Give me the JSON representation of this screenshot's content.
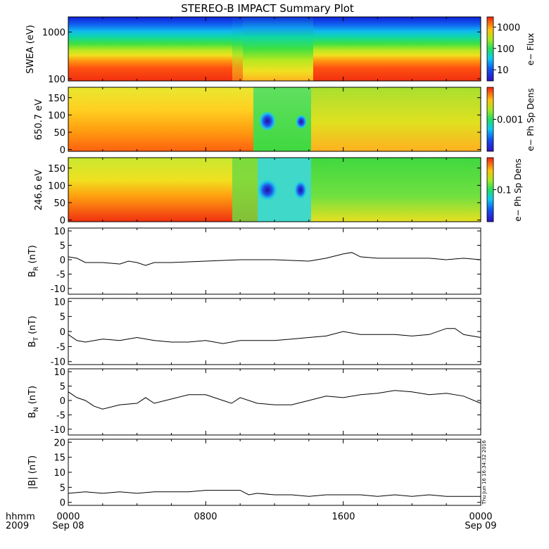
{
  "title": "STEREO-B IMPACT Summary Plot",
  "time_axis": {
    "corner_label_1": "hhmm",
    "corner_label_2": "2009",
    "ticks": [
      {
        "time": "0000",
        "date": "Sep 08"
      },
      {
        "time": "0800",
        "date": ""
      },
      {
        "time": "1600",
        "date": ""
      },
      {
        "time": "0000",
        "date": "Sep 09"
      }
    ]
  },
  "timestamp": "Thu Jun 16 16:34:32 2016",
  "colors": {
    "trace": "#000000",
    "frame": "#000000",
    "background": "#ffffff"
  },
  "chart_data": [
    {
      "type": "heatmap",
      "ylabel": "SWEA (eV)",
      "y_scale": "log",
      "ylim": [
        90,
        2100
      ],
      "y_ticks": [
        100,
        1000
      ],
      "y_tick_labels": [
        "100",
        "1000"
      ],
      "colorbar": {
        "label": "e− Flux",
        "scale": "log",
        "ticks": [
          10,
          100,
          1000
        ],
        "tick_labels": [
          "10",
          "100",
          "1000"
        ]
      },
      "x_range_hours": [
        0,
        24
      ],
      "features": "high flux (red) below ~300 eV, falling to blue above ~1500 eV; reduced flux between ~10:00 and ~14:30"
    },
    {
      "type": "heatmap",
      "ylabel": "650.7 eV",
      "ylim": [
        -5,
        180
      ],
      "y_ticks": [
        0,
        50,
        100,
        150
      ],
      "colorbar": {
        "label": "e− Ph Sp Dens",
        "ticks": [
          0.001
        ],
        "tick_labels": [
          "0.001"
        ]
      },
      "x_range_hours": [
        0,
        24
      ],
      "features": "pitch-angle distribution; green depletion ~11:00-14:30 with blue spots near 12:00 and 14:00 at ~90 deg"
    },
    {
      "type": "heatmap",
      "ylabel": "246.6 eV",
      "ylim": [
        -5,
        180
      ],
      "y_ticks": [
        0,
        50,
        100,
        150
      ],
      "colorbar": {
        "label": "e− Ph Sp Dens",
        "ticks": [
          0.1
        ],
        "tick_labels": [
          "0.1"
        ]
      },
      "x_range_hours": [
        0,
        24
      ],
      "features": "red/orange below 50 deg before ~09:30; blue-cyan block ~10:30-14:30 with dark spots near 12:00 and 14:00"
    },
    {
      "type": "line",
      "ylabel": "B_R (nT)",
      "ylabel_main": "B",
      "ylabel_sub": "R",
      "ylabel_unit": " (nT)",
      "ylim": [
        -12,
        11
      ],
      "y_ticks": [
        -10,
        -5,
        0,
        5,
        10
      ],
      "x_hours": [
        0,
        0.5,
        1,
        2,
        3,
        3.5,
        4,
        4.5,
        5,
        6,
        8,
        10,
        12,
        14,
        15,
        16,
        16.5,
        17,
        18,
        19,
        20,
        21,
        22,
        23,
        24
      ],
      "values": [
        1,
        0.5,
        -1,
        -1,
        -1.5,
        -0.5,
        -1,
        -2,
        -1,
        -1,
        -0.5,
        0,
        0,
        -0.5,
        0.5,
        2,
        2.5,
        1,
        0.5,
        0.5,
        0.5,
        0.5,
        0,
        0.5,
        0
      ]
    },
    {
      "type": "line",
      "ylabel": "B_T (nT)",
      "ylabel_main": "B",
      "ylabel_sub": "T",
      "ylabel_unit": " (nT)",
      "ylim": [
        -11,
        11
      ],
      "y_ticks": [
        -10,
        -5,
        0,
        5,
        10
      ],
      "x_hours": [
        0,
        0.5,
        1,
        2,
        3,
        4,
        5,
        6,
        7,
        8,
        9,
        10,
        11,
        12,
        13,
        14,
        15,
        16,
        17,
        18,
        19,
        20,
        21,
        22,
        22.5,
        23,
        24
      ],
      "values": [
        -1,
        -3,
        -3.5,
        -2.5,
        -3,
        -2,
        -3,
        -3.5,
        -3.5,
        -3,
        -4,
        -3,
        -3,
        -3,
        -2.5,
        -2,
        -1.5,
        0,
        -1,
        -1,
        -1,
        -1.5,
        -1,
        1,
        1,
        -1,
        -2
      ]
    },
    {
      "type": "line",
      "ylabel": "B_N (nT)",
      "ylabel_main": "B",
      "ylabel_sub": "N",
      "ylabel_unit": " (nT)",
      "ylim": [
        -12,
        11
      ],
      "y_ticks": [
        -10,
        -5,
        0,
        5,
        10
      ],
      "x_hours": [
        0,
        0.5,
        1,
        1.5,
        2,
        3,
        4,
        4.5,
        5,
        6,
        7,
        8,
        9,
        9.5,
        10,
        11,
        12,
        13,
        14,
        15,
        16,
        17,
        18,
        19,
        20,
        21,
        22,
        23,
        24
      ],
      "values": [
        3,
        1,
        0,
        -2,
        -3,
        -1.5,
        -1,
        1,
        -1,
        0.5,
        2,
        2,
        0,
        -1,
        1,
        -1,
        -1.5,
        -1.5,
        0,
        1.5,
        1,
        2,
        2.5,
        3.5,
        3,
        2,
        2.5,
        1.5,
        -1
      ]
    },
    {
      "type": "line",
      "ylabel": "|B| (nT)",
      "ylabel_text": "|B| (nT)",
      "ylim": [
        -1,
        21
      ],
      "y_ticks": [
        0,
        5,
        10,
        15,
        20
      ],
      "x_hours": [
        0,
        1,
        2,
        3,
        4,
        5,
        6,
        7,
        8,
        9,
        10,
        10.5,
        11,
        12,
        13,
        14,
        15,
        16,
        17,
        18,
        19,
        20,
        21,
        22,
        23,
        24
      ],
      "values": [
        3,
        3.5,
        3,
        3.5,
        3,
        3.5,
        3.5,
        3.5,
        4,
        4,
        4,
        2.5,
        3,
        2.5,
        2.5,
        2,
        2.5,
        2.5,
        2.5,
        2,
        2.5,
        2,
        2.5,
        2,
        2,
        2
      ]
    }
  ]
}
